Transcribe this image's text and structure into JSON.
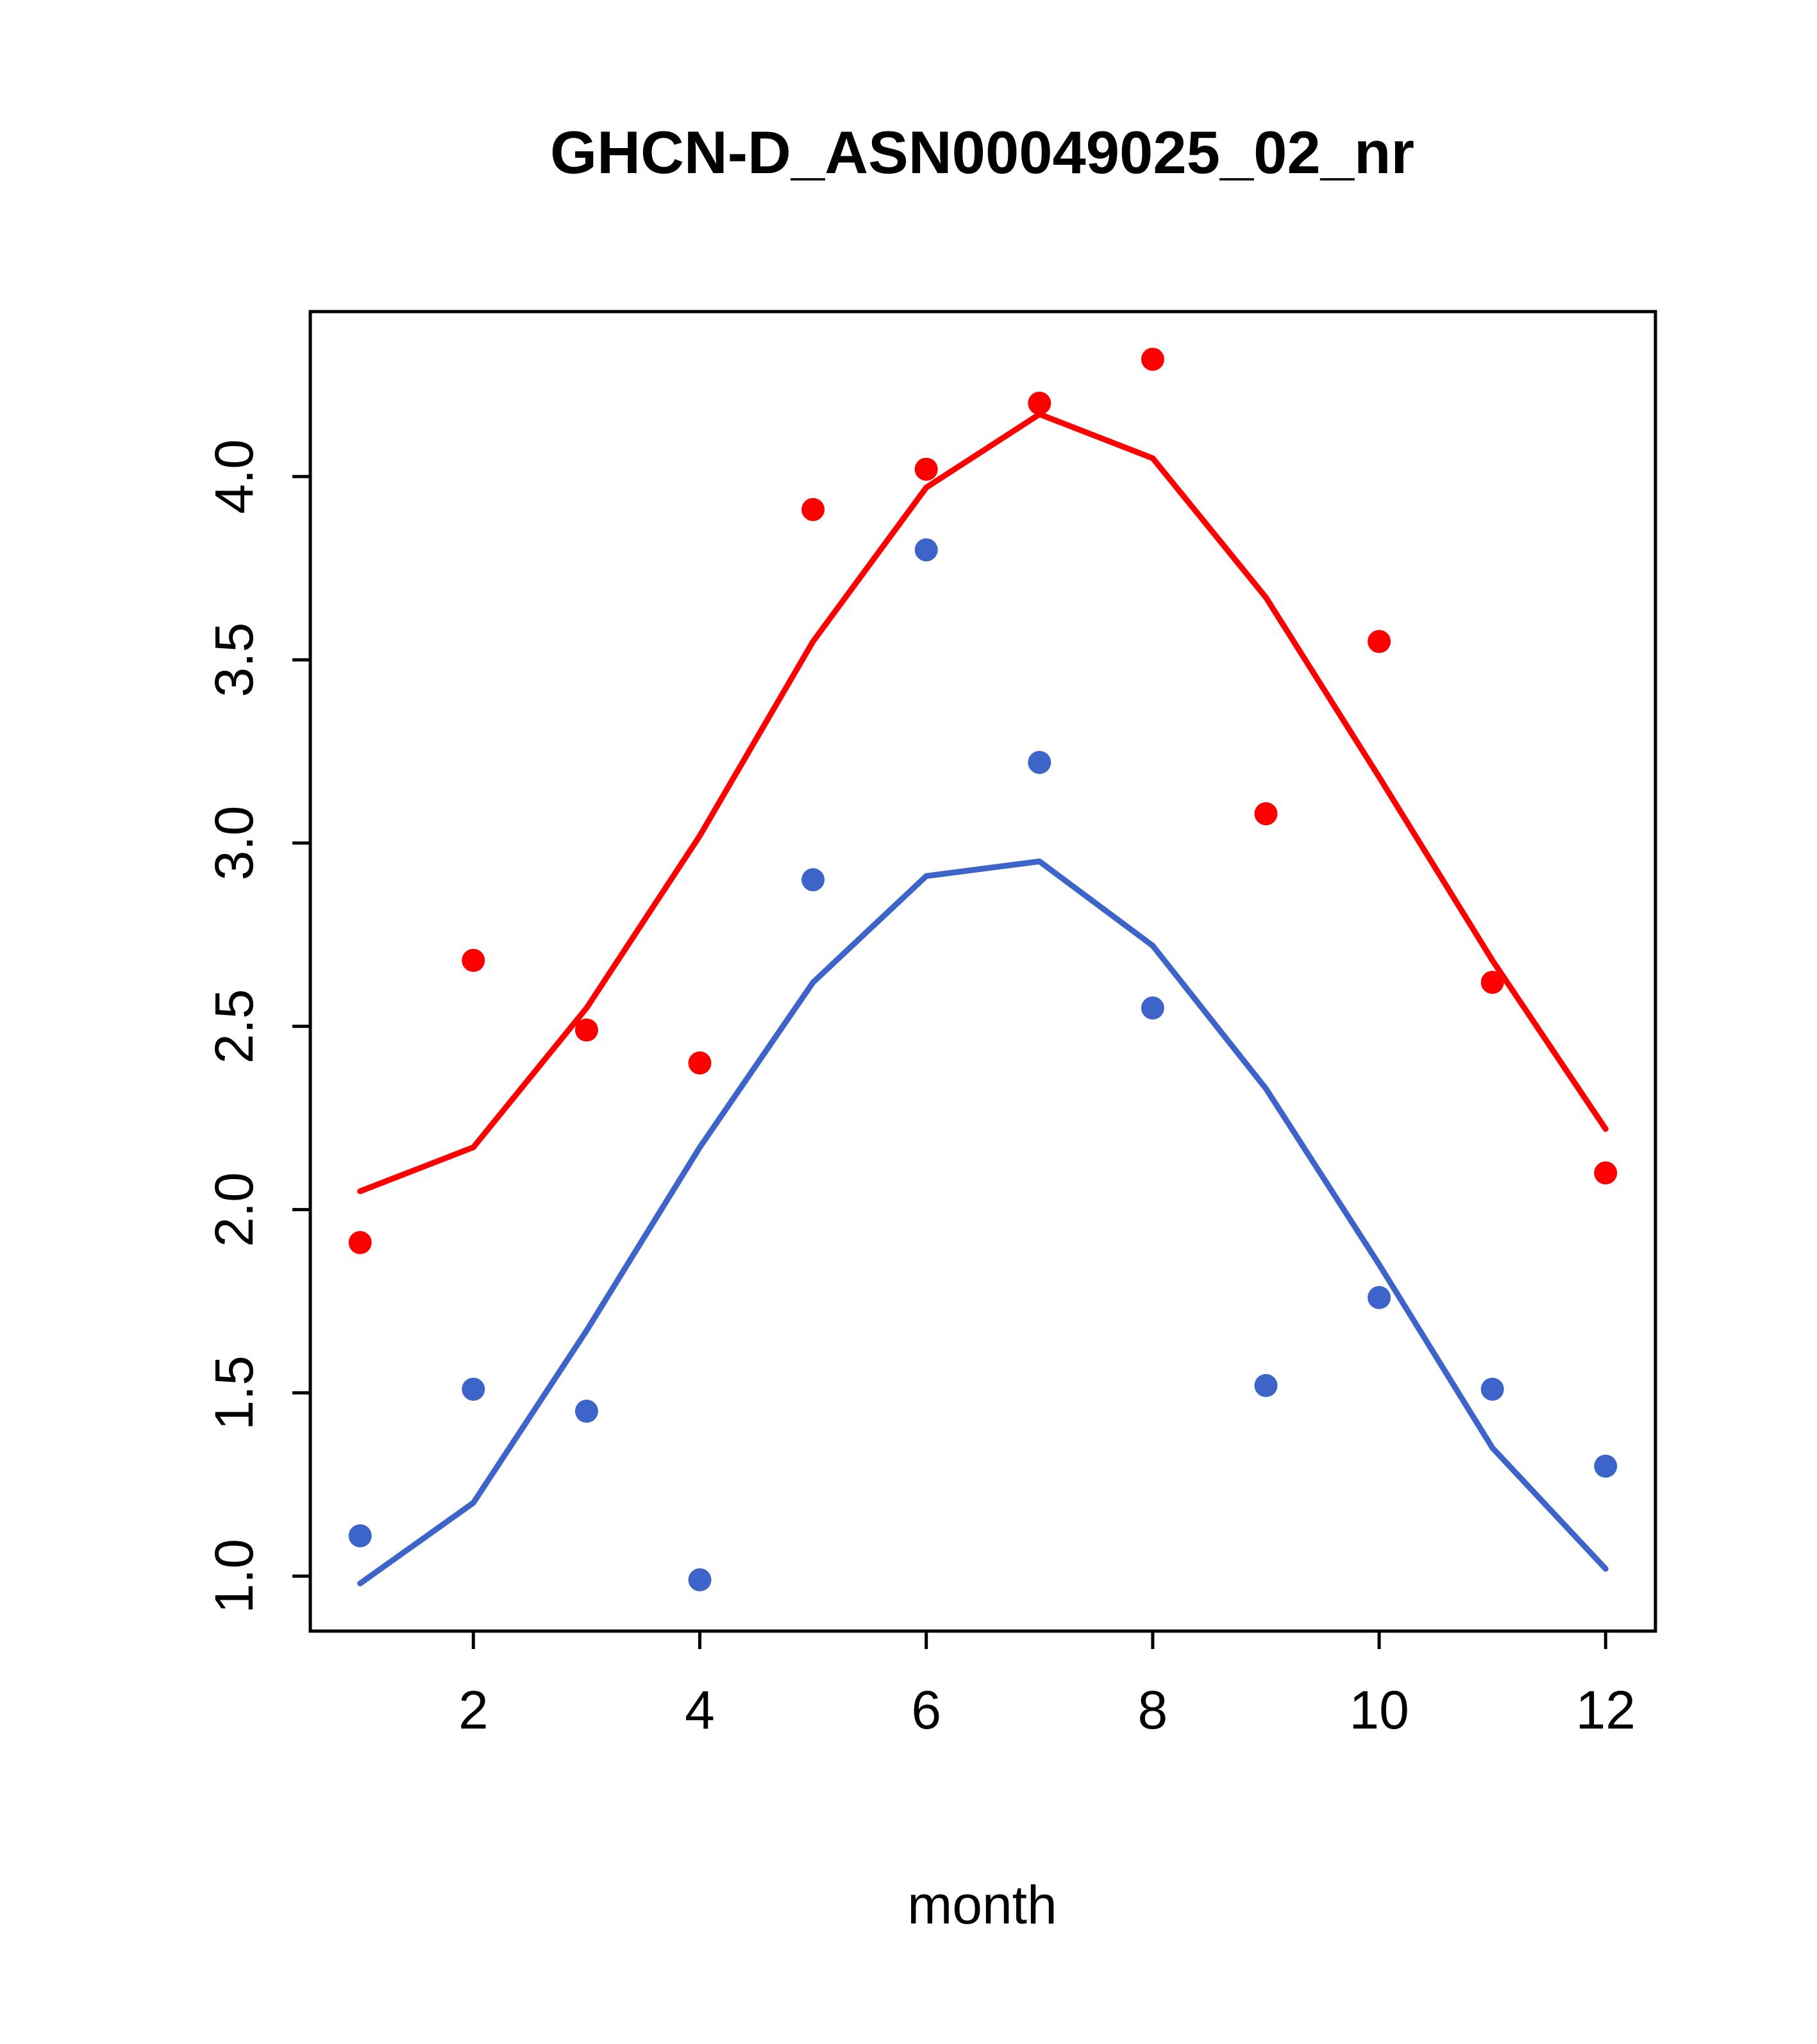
{
  "chart_data": {
    "type": "line",
    "title": "GHCN-D_ASN00049025_02_nr",
    "xlabel": "month",
    "ylabel": "",
    "x": [
      1,
      2,
      3,
      4,
      5,
      6,
      7,
      8,
      9,
      10,
      11,
      12
    ],
    "x_ticks": [
      2,
      4,
      6,
      8,
      10,
      12
    ],
    "x_tick_labels": [
      "2",
      "4",
      "6",
      "8",
      "10",
      "12"
    ],
    "y_ticks": [
      1.0,
      1.5,
      2.0,
      2.5,
      3.0,
      3.5,
      4.0
    ],
    "y_tick_labels": [
      "1.0",
      "1.5",
      "2.0",
      "2.5",
      "3.0",
      "3.5",
      "4.0"
    ],
    "xlim": [
      0.56,
      12.44
    ],
    "ylim": [
      0.85,
      4.45
    ],
    "grid": false,
    "legend": "none",
    "colors": {
      "red": "#ff0000",
      "blue": "#3d64c9",
      "axis": "#000000"
    },
    "series": [
      {
        "name": "red-scatter",
        "kind": "points",
        "color": "#ff0000",
        "values": [
          1.91,
          2.68,
          2.49,
          2.4,
          3.91,
          4.02,
          4.2,
          4.32,
          3.08,
          3.55,
          2.62,
          2.1
        ]
      },
      {
        "name": "red-smooth-line",
        "kind": "line",
        "color": "#ff0000",
        "values": [
          2.05,
          2.17,
          2.55,
          3.02,
          3.55,
          3.97,
          4.17,
          4.05,
          3.67,
          3.18,
          2.68,
          2.22
        ]
      },
      {
        "name": "blue-scatter",
        "kind": "points",
        "color": "#3d64c9",
        "values": [
          1.11,
          1.51,
          1.45,
          0.99,
          2.9,
          3.8,
          3.22,
          2.55,
          1.52,
          1.76,
          1.51,
          1.3
        ]
      },
      {
        "name": "blue-smooth-line",
        "kind": "line",
        "color": "#3d64c9",
        "values": [
          0.98,
          1.2,
          1.67,
          2.17,
          2.62,
          2.91,
          2.95,
          2.72,
          2.33,
          1.85,
          1.35,
          1.02
        ]
      }
    ]
  }
}
